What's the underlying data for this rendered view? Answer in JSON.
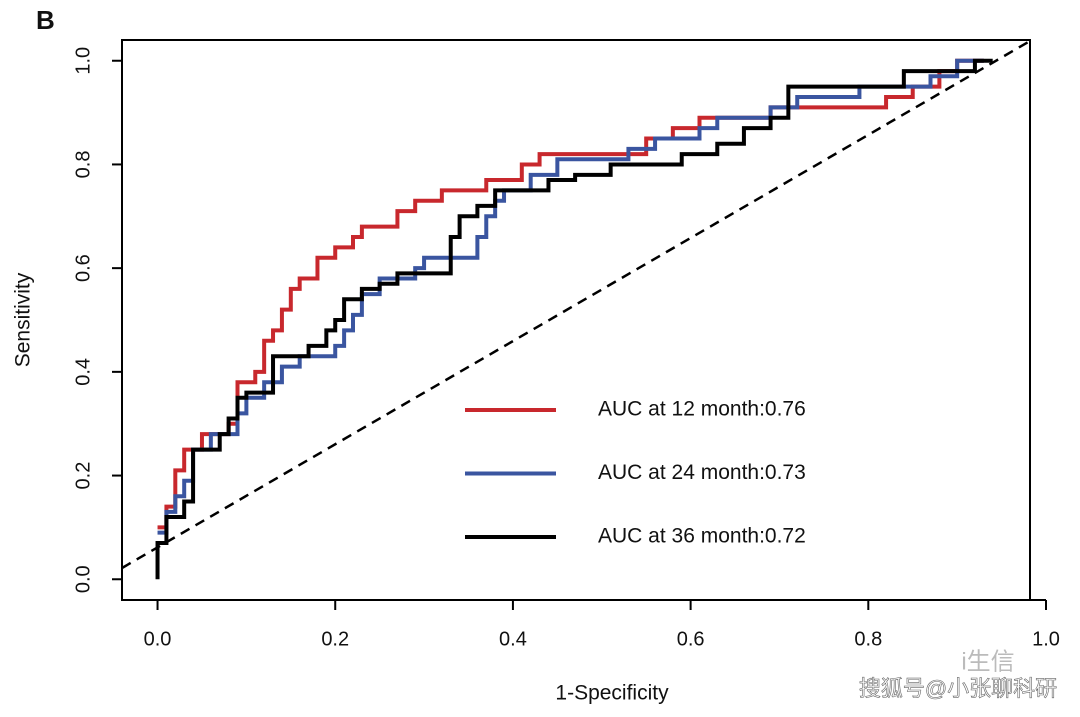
{
  "chart_data": {
    "type": "line",
    "panel_label": "B",
    "xlabel": "1-Specificity",
    "ylabel": "Sensitivity",
    "xlim": [
      -0.04,
      1.0
    ],
    "ylim": [
      -0.04,
      1.04
    ],
    "xticks": [
      {
        "value": 0,
        "label": "0.0"
      },
      0.2,
      0.4,
      0.6,
      0.8,
      {
        "value": 1,
        "label": "1.0"
      }
    ],
    "yticks": [
      {
        "value": 0,
        "label": "0.0"
      },
      0.2,
      0.4,
      0.6,
      0.8,
      {
        "value": 1,
        "label": "1.0"
      }
    ],
    "series": [
      {
        "name": "AUC at 12 month:0.76",
        "color": "#c8282d",
        "x": [
          0,
          0.01,
          0.01,
          0.02,
          0.02,
          0.03,
          0.03,
          0.05,
          0.05,
          0.08,
          0.08,
          0.09,
          0.09,
          0.11,
          0.11,
          0.12,
          0.12,
          0.13,
          0.13,
          0.14,
          0.14,
          0.15,
          0.15,
          0.16,
          0.16,
          0.18,
          0.18,
          0.2,
          0.2,
          0.22,
          0.22,
          0.23,
          0.23,
          0.27,
          0.27,
          0.29,
          0.29,
          0.32,
          0.32,
          0.37,
          0.37,
          0.41,
          0.41,
          0.43,
          0.43,
          0.55,
          0.55,
          0.58,
          0.58,
          0.61,
          0.61,
          0.69,
          0.69,
          0.82,
          0.82,
          0.85,
          0.85,
          0.88,
          0.88,
          0.9,
          0.9,
          0.93
        ],
        "values": [
          0.1,
          0.1,
          0.14,
          0.14,
          0.21,
          0.21,
          0.25,
          0.25,
          0.28,
          0.28,
          0.3,
          0.3,
          0.38,
          0.38,
          0.4,
          0.4,
          0.46,
          0.46,
          0.48,
          0.48,
          0.52,
          0.52,
          0.56,
          0.56,
          0.58,
          0.58,
          0.62,
          0.62,
          0.64,
          0.64,
          0.66,
          0.66,
          0.68,
          0.68,
          0.71,
          0.71,
          0.73,
          0.73,
          0.75,
          0.75,
          0.77,
          0.77,
          0.8,
          0.8,
          0.82,
          0.82,
          0.85,
          0.85,
          0.87,
          0.87,
          0.89,
          0.89,
          0.91,
          0.91,
          0.93,
          0.93,
          0.95,
          0.95,
          0.98,
          0.98,
          1.0,
          1.0
        ]
      },
      {
        "name": "AUC at 24 month:0.73",
        "color": "#3a55a0",
        "x": [
          0,
          0.01,
          0.01,
          0.02,
          0.02,
          0.03,
          0.03,
          0.04,
          0.04,
          0.06,
          0.06,
          0.09,
          0.09,
          0.1,
          0.1,
          0.12,
          0.12,
          0.14,
          0.14,
          0.16,
          0.16,
          0.2,
          0.2,
          0.21,
          0.21,
          0.22,
          0.22,
          0.23,
          0.23,
          0.25,
          0.25,
          0.29,
          0.29,
          0.3,
          0.3,
          0.36,
          0.36,
          0.37,
          0.37,
          0.38,
          0.38,
          0.39,
          0.39,
          0.42,
          0.42,
          0.45,
          0.45,
          0.53,
          0.53,
          0.56,
          0.56,
          0.61,
          0.61,
          0.63,
          0.63,
          0.69,
          0.69,
          0.72,
          0.72,
          0.79,
          0.79,
          0.87,
          0.87,
          0.9,
          0.9,
          0.93
        ],
        "values": [
          0.09,
          0.09,
          0.13,
          0.13,
          0.16,
          0.16,
          0.19,
          0.19,
          0.25,
          0.25,
          0.28,
          0.28,
          0.32,
          0.32,
          0.35,
          0.35,
          0.38,
          0.38,
          0.41,
          0.41,
          0.43,
          0.43,
          0.45,
          0.45,
          0.48,
          0.48,
          0.51,
          0.51,
          0.55,
          0.55,
          0.58,
          0.58,
          0.6,
          0.6,
          0.62,
          0.62,
          0.66,
          0.66,
          0.7,
          0.7,
          0.73,
          0.73,
          0.75,
          0.75,
          0.78,
          0.78,
          0.81,
          0.81,
          0.83,
          0.83,
          0.85,
          0.85,
          0.87,
          0.87,
          0.89,
          0.89,
          0.91,
          0.91,
          0.93,
          0.93,
          0.95,
          0.95,
          0.97,
          0.97,
          1.0,
          1.0
        ]
      },
      {
        "name": "AUC at 36 month:0.72",
        "color": "#000000",
        "x": [
          0,
          0,
          0.01,
          0.01,
          0.03,
          0.03,
          0.04,
          0.04,
          0.07,
          0.07,
          0.08,
          0.08,
          0.09,
          0.09,
          0.1,
          0.1,
          0.13,
          0.13,
          0.17,
          0.17,
          0.19,
          0.19,
          0.2,
          0.2,
          0.21,
          0.21,
          0.23,
          0.23,
          0.25,
          0.25,
          0.27,
          0.27,
          0.33,
          0.33,
          0.34,
          0.34,
          0.36,
          0.36,
          0.38,
          0.38,
          0.44,
          0.44,
          0.47,
          0.47,
          0.51,
          0.51,
          0.59,
          0.59,
          0.63,
          0.63,
          0.66,
          0.66,
          0.69,
          0.69,
          0.71,
          0.71,
          0.84,
          0.84,
          0.92,
          0.92,
          0.94
        ],
        "values": [
          0,
          0.07,
          0.07,
          0.12,
          0.12,
          0.15,
          0.15,
          0.25,
          0.25,
          0.28,
          0.28,
          0.31,
          0.31,
          0.35,
          0.35,
          0.36,
          0.36,
          0.43,
          0.43,
          0.45,
          0.45,
          0.48,
          0.48,
          0.5,
          0.5,
          0.54,
          0.54,
          0.56,
          0.56,
          0.57,
          0.57,
          0.59,
          0.59,
          0.66,
          0.66,
          0.7,
          0.7,
          0.72,
          0.72,
          0.75,
          0.75,
          0.77,
          0.77,
          0.78,
          0.78,
          0.8,
          0.8,
          0.82,
          0.82,
          0.84,
          0.84,
          0.87,
          0.87,
          0.89,
          0.89,
          0.95,
          0.95,
          0.98,
          0.98,
          1.0,
          1.0
        ]
      }
    ]
  },
  "watermark": {
    "logo": "i生信",
    "source": "搜狐号@小张聊科研"
  }
}
